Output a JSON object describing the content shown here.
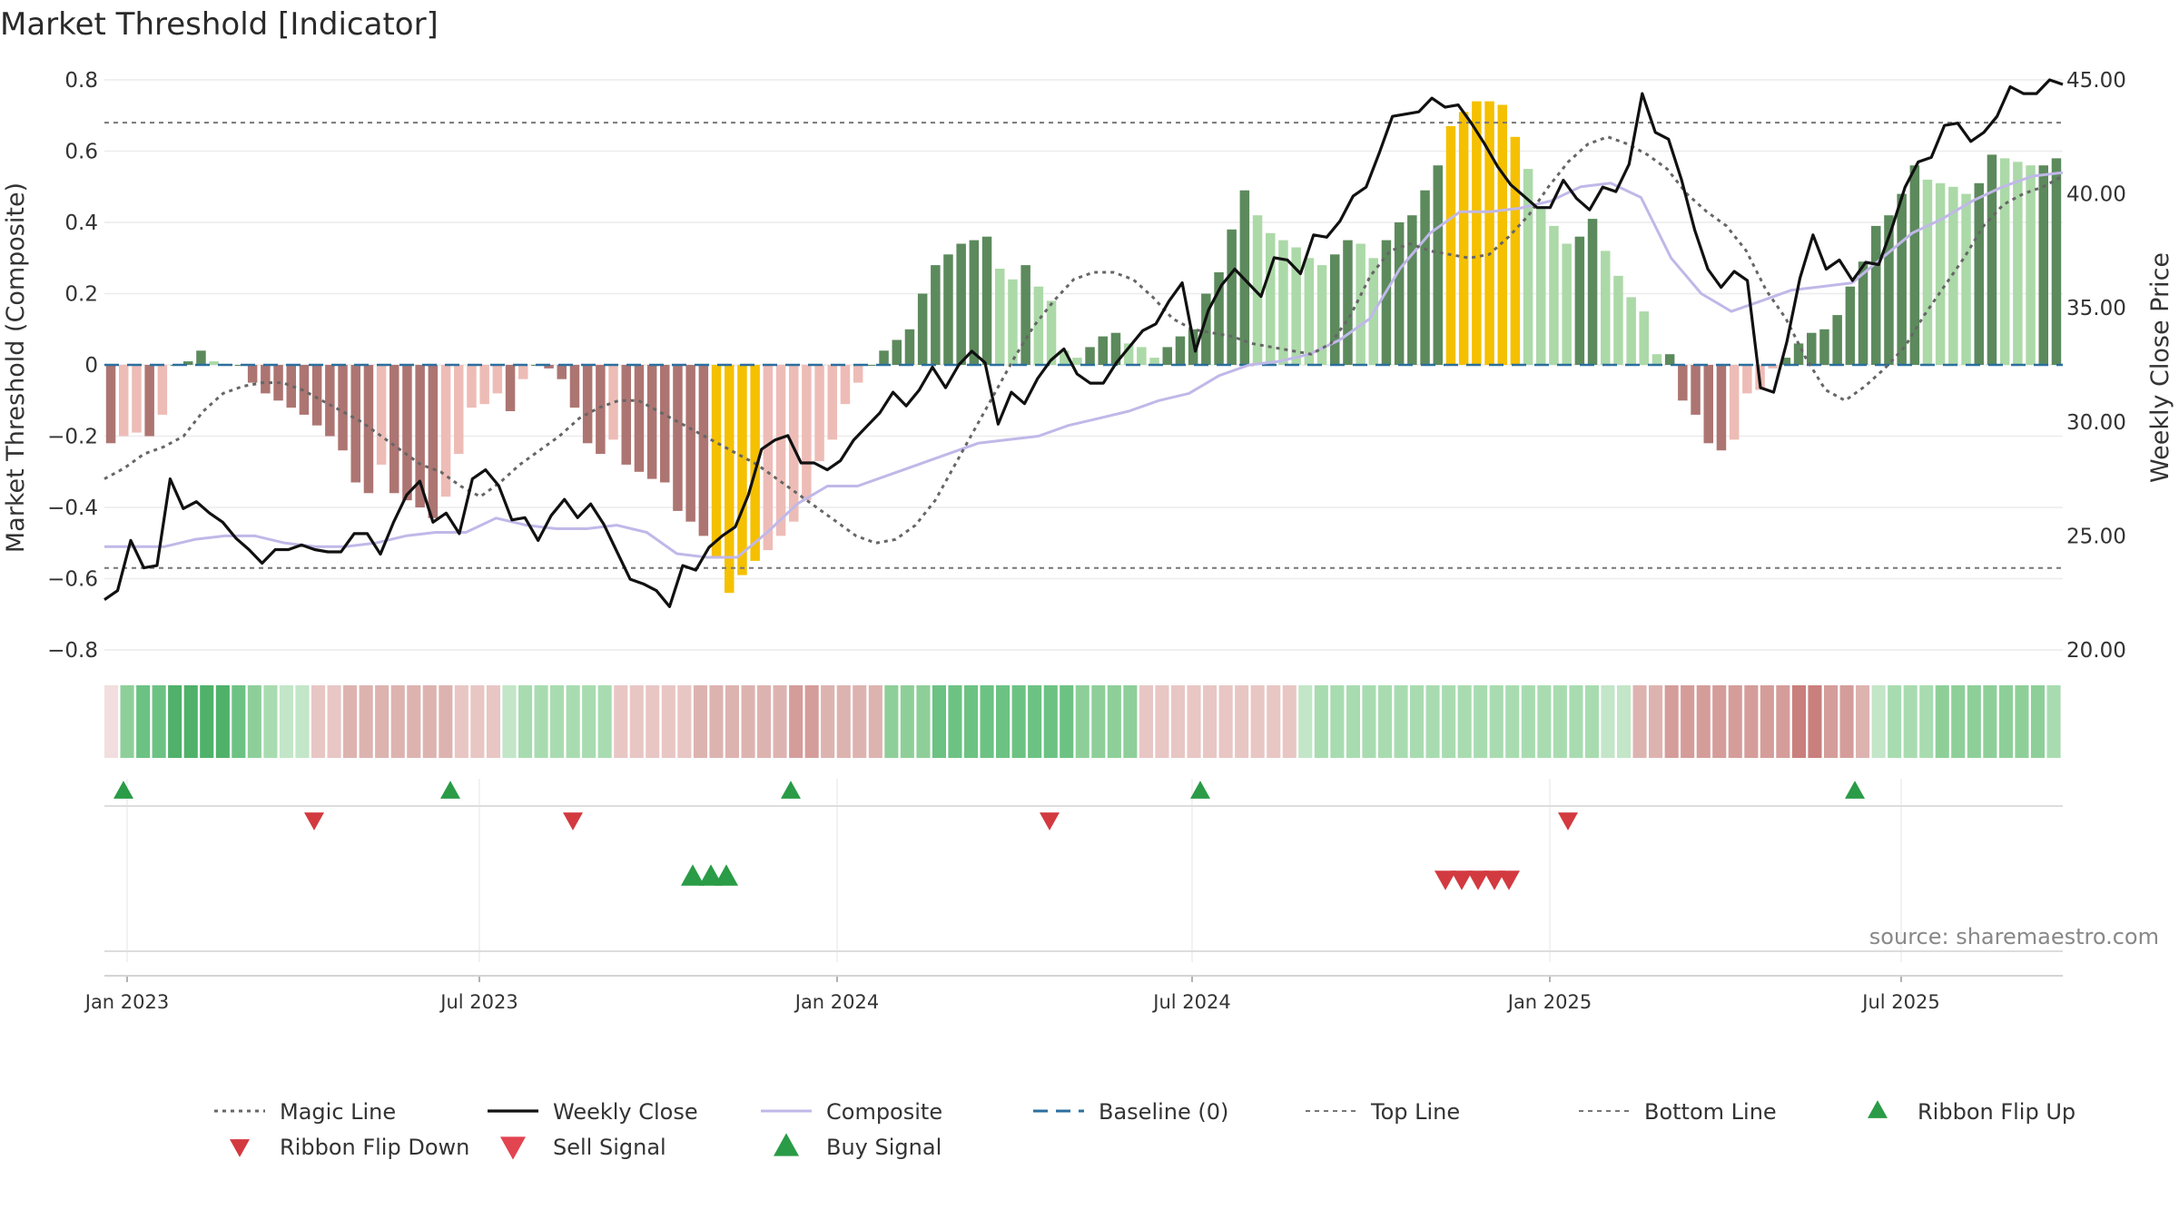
{
  "chart_data": {
    "type": "bar",
    "title": "Market Threshold [Indicator]",
    "ylabel_left": "Market Threshold (Composite)",
    "ylabel_right": "Weekly Close Price",
    "source": "source: sharemaestro.com",
    "ylim_left": [
      -0.8,
      0.8
    ],
    "ylim_right": [
      20,
      45
    ],
    "yticks_left": [
      "0.8",
      "0.6",
      "0.4",
      "0.2",
      "0",
      "−0.2",
      "−0.4",
      "−0.6",
      "−0.8"
    ],
    "yticks_right": [
      "45.00",
      "40.00",
      "35.00",
      "30.00",
      "25.00",
      "20.00"
    ],
    "x_ticks": [
      "Jan 2023",
      "Jul 2023",
      "Jan 2024",
      "Jul 2024",
      "Jan 2025",
      "Jul 2025"
    ],
    "grid": true,
    "top_line": 0.68,
    "bottom_line": -0.57,
    "colors": {
      "dark_green": "#5c8a5c",
      "light_green": "#acd9a8",
      "dark_red": "#ad7572",
      "light_red": "#eebcb6",
      "yellow": "#f5c000",
      "weekly_close": "#111111",
      "composite": "#c0b8e8",
      "magic": "#666666",
      "baseline": "#2b6f9e",
      "threshold": "#777777",
      "signal_green": "#2a9b46",
      "signal_red": "#d23a40"
    },
    "composite_bars": [
      -0.22,
      -0.2,
      -0.19,
      -0.2,
      -0.14,
      0,
      0.01,
      0.04,
      0.01,
      0,
      0,
      -0.05,
      -0.08,
      -0.1,
      -0.12,
      -0.14,
      -0.17,
      -0.2,
      -0.24,
      -0.33,
      -0.36,
      -0.28,
      -0.36,
      -0.38,
      -0.4,
      -0.43,
      -0.37,
      -0.25,
      -0.12,
      -0.11,
      -0.08,
      -0.13,
      -0.04,
      0,
      -0.01,
      -0.04,
      -0.12,
      -0.22,
      -0.25,
      -0.21,
      -0.28,
      -0.3,
      -0.32,
      -0.33,
      -0.41,
      -0.44,
      -0.48,
      -0.54,
      -0.64,
      -0.59,
      -0.55,
      -0.52,
      -0.48,
      -0.44,
      -0.38,
      -0.27,
      -0.21,
      -0.11,
      -0.05,
      0,
      0.04,
      0.07,
      0.1,
      0.2,
      0.28,
      0.31,
      0.34,
      0.35,
      0.36,
      0.27,
      0.24,
      0.28,
      0.22,
      0.18,
      0.04,
      0.02,
      0.05,
      0.08,
      0.09,
      0.06,
      0.05,
      0.02,
      0.05,
      0.08,
      0.1,
      0.2,
      0.26,
      0.38,
      0.49,
      0.42,
      0.37,
      0.35,
      0.33,
      0.3,
      0.28,
      0.31,
      0.35,
      0.34,
      0.3,
      0.35,
      0.4,
      0.42,
      0.49,
      0.56,
      0.67,
      0.71,
      0.74,
      0.74,
      0.73,
      0.64,
      0.55,
      0.44,
      0.39,
      0.34,
      0.36,
      0.41,
      0.32,
      0.25,
      0.19,
      0.15,
      0.03,
      0.03,
      -0.1,
      -0.14,
      -0.22,
      -0.24,
      -0.21,
      -0.08,
      -0.07,
      -0.01,
      0.02,
      0.06,
      0.09,
      0.1,
      0.14,
      0.22,
      0.29,
      0.39,
      0.42,
      0.48,
      0.56,
      0.52,
      0.51,
      0.5,
      0.48,
      0.51,
      0.59,
      0.58,
      0.57,
      0.56,
      0.56,
      0.58
    ],
    "magic_line": [
      -0.32,
      -0.29,
      -0.25,
      -0.23,
      -0.2,
      -0.13,
      -0.08,
      -0.06,
      -0.05,
      -0.05,
      -0.07,
      -0.1,
      -0.13,
      -0.16,
      -0.2,
      -0.24,
      -0.28,
      -0.3,
      -0.34,
      -0.37,
      -0.33,
      -0.28,
      -0.24,
      -0.2,
      -0.15,
      -0.12,
      -0.1,
      -0.1,
      -0.13,
      -0.16,
      -0.19,
      -0.22,
      -0.25,
      -0.28,
      -0.32,
      -0.36,
      -0.4,
      -0.44,
      -0.48,
      -0.5,
      -0.49,
      -0.45,
      -0.38,
      -0.28,
      -0.18,
      -0.08,
      0.02,
      0.11,
      0.18,
      0.24,
      0.26,
      0.26,
      0.24,
      0.19,
      0.13,
      0.1,
      0.09,
      0.08,
      0.06,
      0.05,
      0.04,
      0.03,
      0.06,
      0.14,
      0.25,
      0.32,
      0.34,
      0.32,
      0.31,
      0.3,
      0.31,
      0.36,
      0.42,
      0.5,
      0.57,
      0.62,
      0.64,
      0.62,
      0.59,
      0.55,
      0.48,
      0.43,
      0.39,
      0.32,
      0.21,
      0.13,
      0.02,
      -0.07,
      -0.1,
      -0.06,
      -0.01,
      0.05,
      0.14,
      0.22,
      0.3,
      0.39,
      0.45,
      0.48,
      0.5,
      0.53
    ],
    "composite_line": [
      -0.51,
      -0.51,
      -0.51,
      -0.49,
      -0.48,
      -0.48,
      -0.5,
      -0.51,
      -0.51,
      -0.5,
      -0.48,
      -0.47,
      -0.47,
      -0.43,
      -0.45,
      -0.46,
      -0.46,
      -0.45,
      -0.47,
      -0.53,
      -0.54,
      -0.54,
      -0.47,
      -0.39,
      -0.34,
      -0.34,
      -0.31,
      -0.28,
      -0.25,
      -0.22,
      -0.21,
      -0.2,
      -0.17,
      -0.15,
      -0.13,
      -0.1,
      -0.08,
      -0.03,
      0.0,
      0.01,
      0.03,
      0.07,
      0.13,
      0.27,
      0.37,
      0.43,
      0.43,
      0.44,
      0.46,
      0.5,
      0.51,
      0.47,
      0.3,
      0.2,
      0.15,
      0.18,
      0.21,
      0.22,
      0.23,
      0.3,
      0.37,
      0.41,
      0.46,
      0.5,
      0.53,
      0.54
    ],
    "weekly_close": [
      22.2,
      22.6,
      24.8,
      23.6,
      23.7,
      27.5,
      26.2,
      26.5,
      26,
      25.6,
      24.9,
      24.4,
      23.8,
      24.4,
      24.4,
      24.6,
      24.4,
      24.3,
      24.3,
      25.1,
      25.1,
      24.2,
      25.6,
      26.8,
      27.4,
      25.6,
      26,
      25.1,
      27.5,
      27.9,
      27.2,
      25.7,
      25.8,
      24.8,
      25.9,
      26.6,
      25.8,
      26.4,
      25.5,
      24.3,
      23.1,
      22.9,
      22.6,
      21.9,
      23.7,
      23.5,
      24.5,
      25,
      25.4,
      26.8,
      28.8,
      29.2,
      29.4,
      28.2,
      28.2,
      27.9,
      28.3,
      29.2,
      29.8,
      30.4,
      31.3,
      30.7,
      31.4,
      32.4,
      31.5,
      32.5,
      33.1,
      32.6,
      29.9,
      31.3,
      30.8,
      31.9,
      32.7,
      33.2,
      32.1,
      31.7,
      31.7,
      32.6,
      33.3,
      34,
      34.3,
      35.3,
      36.1,
      33.1,
      34.9,
      36,
      36.7,
      36.1,
      35.5,
      37.2,
      37.1,
      36.5,
      38.2,
      38.1,
      38.8,
      39.9,
      40.3,
      41.8,
      43.4,
      43.5,
      43.6,
      44.2,
      43.8,
      43.9,
      43.1,
      42.2,
      41.2,
      40.4,
      39.9,
      39.4,
      39.4,
      40.6,
      39.8,
      39.3,
      40.3,
      40.1,
      41.3,
      44.4,
      42.7,
      42.4,
      40.6,
      38.4,
      36.7,
      35.9,
      36.6,
      36.2,
      31.5,
      31.3,
      33.5,
      36.3,
      38.2,
      36.7,
      37.1,
      36.2,
      37,
      36.9,
      38.5,
      40.3,
      41.4,
      41.6,
      43,
      43.1,
      42.3,
      42.7,
      43.4,
      44.7,
      44.4,
      44.4,
      45,
      44.8
    ]
  },
  "strip": {
    "palette": [
      "#f2dede",
      "#e8c6c4",
      "#ddb3b0",
      "#d49d9a",
      "#c97f7c",
      "#c2e6c7",
      "#a8dcb0",
      "#8ecf99",
      "#6cc283",
      "#4fb16a"
    ],
    "levels": [
      0,
      7,
      8,
      8,
      9,
      9,
      9,
      9,
      8,
      7,
      6,
      5,
      5,
      1,
      1,
      2,
      2,
      2,
      2,
      2,
      2,
      2,
      1,
      1,
      1,
      5,
      6,
      6,
      6,
      6,
      6,
      6,
      1,
      1,
      1,
      1,
      1,
      2,
      2,
      2,
      2,
      2,
      2,
      3,
      3,
      2,
      2,
      2,
      2,
      7,
      7,
      7,
      8,
      8,
      8,
      8,
      8,
      8,
      8,
      8,
      8,
      7,
      7,
      7,
      7,
      1,
      1,
      1,
      1,
      1,
      1,
      1,
      1,
      1,
      1,
      5,
      6,
      6,
      6,
      6,
      6,
      6,
      6,
      6,
      6,
      6,
      6,
      6,
      6,
      6,
      6,
      6,
      6,
      6,
      5,
      5,
      2,
      2,
      3,
      3,
      3,
      3,
      3,
      3,
      3,
      3,
      4,
      4,
      3,
      3,
      2,
      5,
      6,
      6,
      6,
      7,
      7,
      7,
      7,
      7,
      7,
      7,
      6
    ]
  },
  "signals": {
    "ribbon_flip_up": [
      "Jan 2023",
      "Jul 2023",
      "Jan 2024",
      "Jul 2024",
      "Jul 2025"
    ],
    "ribbon_flip_down": [
      "Apr 2023",
      "Sep 2023",
      "May 2024",
      "Jan 2025"
    ],
    "buy_signals": [
      "Nov 2023",
      "Nov 2023",
      "Nov 2023"
    ],
    "sell_signals": [
      "Nov 2024",
      "Nov 2024",
      "Nov 2024",
      "Dec 2024",
      "Dec 2024"
    ]
  },
  "legend": {
    "magic": "Magic Line",
    "weekly_close": "Weekly Close",
    "composite": "Composite",
    "baseline": "Baseline (0)",
    "top_line": "Top Line",
    "bottom_line": "Bottom Line",
    "flip_up": "Ribbon Flip Up",
    "flip_down": "Ribbon Flip Down",
    "sell": "Sell Signal",
    "buy": "Buy Signal"
  }
}
